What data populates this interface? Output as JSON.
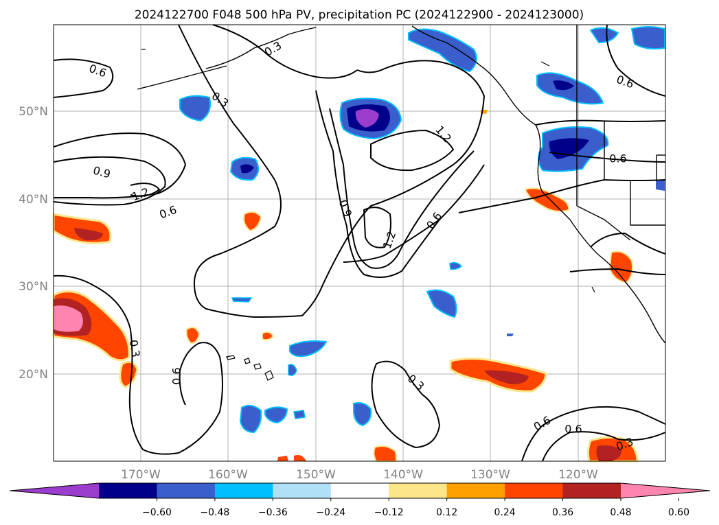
{
  "title": "2024122700 F048 500 hPa PV, precipitation PC (2024122900 - 2024123000)",
  "lat_ticks": [
    "50°N",
    "40°N",
    "30°N",
    "20°N"
  ],
  "lon_ticks": [
    "170°W",
    "160°W",
    "150°W",
    "140°W",
    "130°W",
    "120°W"
  ],
  "colorbar": {
    "colors": [
      "#9a3ccc",
      "#00008b",
      "#3a5fcd",
      "#00bfff",
      "#b0e0f8",
      "#ffffff",
      "#fde68a",
      "#ffa000",
      "#ff4500",
      "#b22222",
      "#ff85b0"
    ],
    "tick_labels": [
      "−0.60",
      "−0.48",
      "−0.36",
      "−0.24",
      "−0.12",
      "0.12",
      "0.24",
      "0.36",
      "0.48",
      "0.60"
    ]
  },
  "contour_labels": [
    {
      "text": "0.6"
    },
    {
      "text": "0.3"
    },
    {
      "text": "0.9"
    },
    {
      "text": "1.2"
    },
    {
      "text": "0.6"
    },
    {
      "text": "1.2"
    },
    {
      "text": "0.9"
    },
    {
      "text": "1.2"
    },
    {
      "text": "0.6"
    },
    {
      "text": "0.6"
    },
    {
      "text": "0.6"
    },
    {
      "text": "0.3"
    },
    {
      "text": "0.6"
    },
    {
      "text": "0.3"
    },
    {
      "text": "0.3"
    },
    {
      "text": "0.6"
    },
    {
      "text": "0.3"
    },
    {
      "text": "0.6"
    }
  ]
}
